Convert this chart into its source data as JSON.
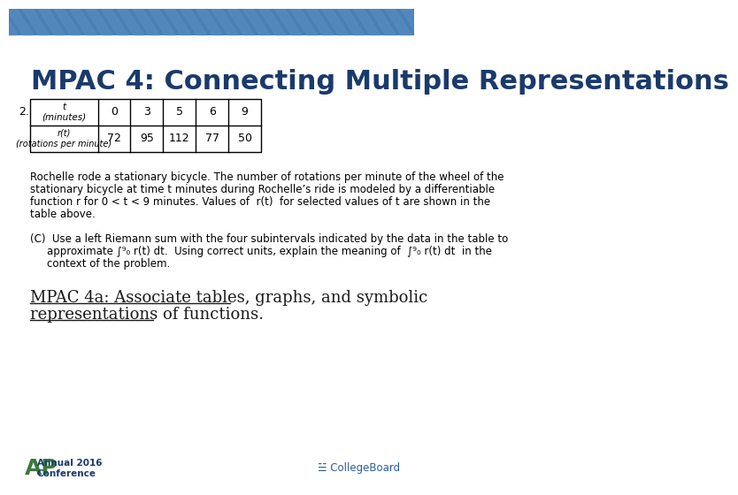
{
  "title": "MPAC 4: Connecting Multiple Representations",
  "title_color": "#1a3a6b",
  "title_fontsize": 22,
  "background_color": "#ffffff",
  "header_bar_color": "#4a7fb5",
  "header_bar_height": 0.055,
  "table_t_label": "t\n(minutes)",
  "table_r_label": "r(t)\n(rotations per minute)",
  "table_t_values": [
    "0",
    "3",
    "5",
    "6",
    "9"
  ],
  "table_r_values": [
    "72",
    "95",
    "112",
    "77",
    "50"
  ],
  "problem_number": "2.",
  "body_text_line1": "Rochelle rode a stationary bicycle. The number of rotations per minute of the wheel of the",
  "body_text_line2": "stationary bicycle at time t minutes during Rochelle’s ride is modeled by a differentiable",
  "body_text_line3": "function r for 0 < t < 9 minutes. Values of  r(t)  for selected values of t are shown in the",
  "body_text_line4": "table above.",
  "part_c_line1": "(C)  Use a left Riemann sum with the four subintervals indicated by the data in the table to",
  "part_c_line2": "approximate ∫⁹₀ r(t) dt.  Using correct units, explain the meaning of  ∫⁹₀ r(t) dt  in the",
  "part_c_line3": "context of the problem.",
  "mpac_label": "MPAC 4a: Associate tables, graphs, and symbolic\nrepresentations of functions.",
  "mpac_color": "#1a1a1a",
  "mpac_fontsize": 13,
  "ap_text": "AP® Annual 2016\nConference",
  "ap_color_ap": "#3a7a3a",
  "ap_color_text": "#1a3a6b",
  "collegeboard_text": "☱ CollegeBoard",
  "collegeboard_color": "#2a5f9e",
  "footer_fontsize": 9,
  "body_fontsize": 9,
  "diagonal_stripe_color": "#5a8fc0"
}
